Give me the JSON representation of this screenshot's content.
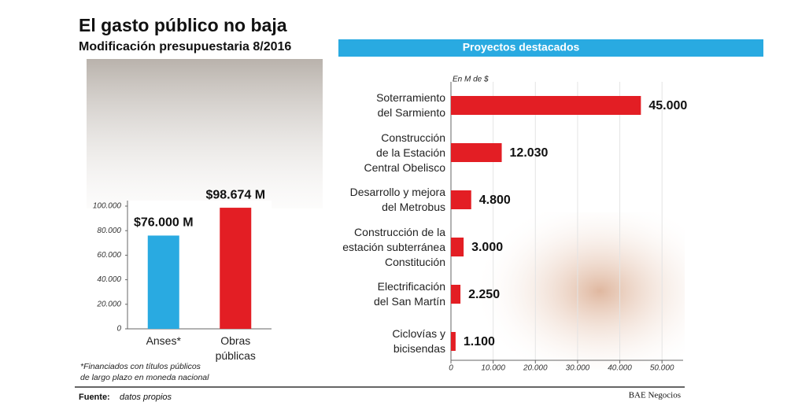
{
  "header": {
    "title": "El gasto público no baja",
    "subtitle": "Modificación presupuestaria 8/2016"
  },
  "chart_data": [
    {
      "type": "bar",
      "categories": [
        "Anses*",
        "Obras\npúblicas"
      ],
      "values": [
        76000,
        98674
      ],
      "value_labels": [
        "$76.000 M",
        "$98.674 M"
      ],
      "colors": [
        "#29aae1",
        "#e31e24"
      ],
      "ylim": [
        0,
        100000
      ],
      "yticks": [
        0,
        {
          "value": 20000,
          "label": "20.000"
        },
        {
          "value": 40000,
          "label": "40.000"
        },
        {
          "value": 60000,
          "label": "60.000"
        },
        {
          "value": 80000,
          "label": "80.000"
        },
        {
          "value": 100000,
          "label": "100.000"
        }
      ],
      "grid": false,
      "footnote": "*Financiados con títulos públicos\nde largo plazo en moneda nacional"
    },
    {
      "type": "barh",
      "title": "Proyectos destacados",
      "unit": "En M de $",
      "categories": [
        "Soterramiento\ndel Sarmiento",
        "Construcción\nde la Estación\nCentral Obelisco",
        "Desarrollo y mejora\ndel Metrobus",
        "Construcción de la\nestación subterránea\nConstitución",
        "Electrificación\ndel San Martín",
        "Ciclovías y\nbicisendas"
      ],
      "values": [
        45000,
        12030,
        4800,
        3000,
        2250,
        1100
      ],
      "value_labels": [
        "45.000",
        "12.030",
        "4.800",
        "3.000",
        "2.250",
        "1.100"
      ],
      "color": "#e31e24",
      "xlim": [
        0,
        55000
      ],
      "xticks": [
        0,
        {
          "value": 10000,
          "label": "10.000"
        },
        {
          "value": 20000,
          "label": "20.000"
        },
        {
          "value": 30000,
          "label": "30.000"
        },
        {
          "value": 40000,
          "label": "40.000"
        },
        {
          "value": 50000,
          "label": "50.000"
        }
      ],
      "grid": true
    }
  ],
  "footer": {
    "source_label": "Fuente:",
    "source": "datos propios",
    "credit": "BAE Negocios"
  }
}
